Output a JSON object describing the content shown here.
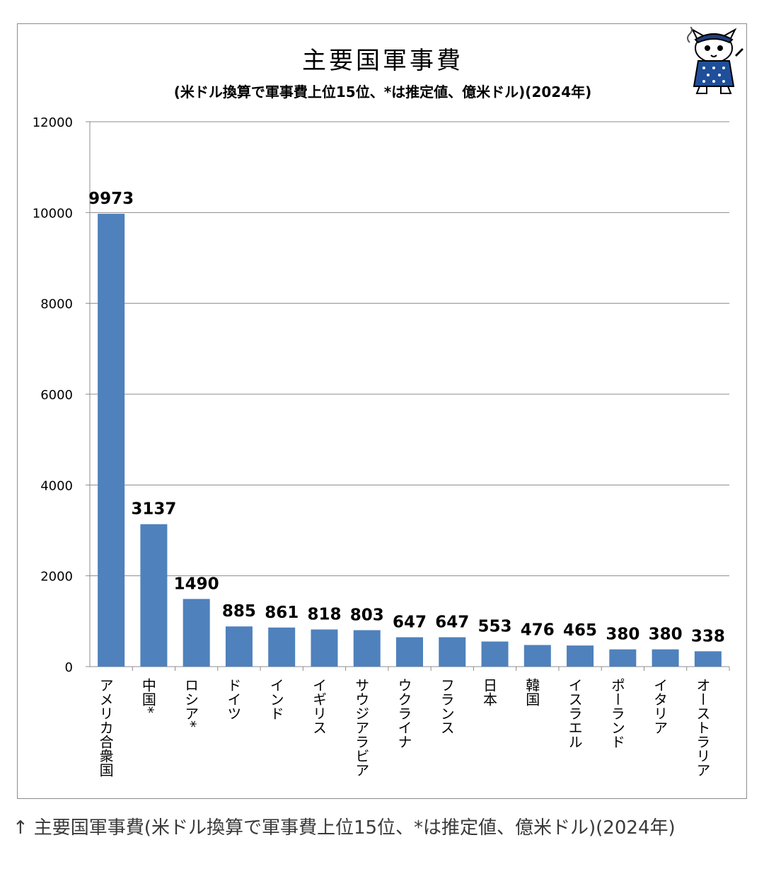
{
  "caption": {
    "arrow": "↑",
    "text": "主要国軍事費(米ドル換算で軍事費上位15位、*は推定値、億米ドル)(2024年)"
  },
  "colors": {
    "bar": "#4f81bd",
    "grid": "#8c8c8c",
    "axis": "#8c8c8c"
  },
  "mascot": {
    "icon": "cat-mascot-icon"
  },
  "chart_data": {
    "type": "bar",
    "title": "主要国軍事費",
    "subtitle": "(米ドル換算で軍事費上位15位、*は推定値、億米ドル)(2024年)",
    "categories": [
      "アメリカ合衆国",
      "中国*",
      "ロシア*",
      "ドイツ",
      "インド",
      "イギリス",
      "サウジアラビア",
      "ウクライナ",
      "フランス",
      "日本",
      "韓国",
      "イスラエル",
      "ポーランド",
      "イタリア",
      "オーストラリア"
    ],
    "values": [
      9973,
      3137,
      1490,
      885,
      861,
      818,
      803,
      647,
      647,
      553,
      476,
      465,
      380,
      380,
      338
    ],
    "data_labels": [
      "9973",
      "3137",
      "1490",
      "885",
      "861",
      "818",
      "803",
      "647",
      "647",
      "553",
      "476",
      "465",
      "380",
      "380",
      "338"
    ],
    "yticks": [
      "0",
      "2000",
      "4000",
      "6000",
      "8000",
      "10000",
      "12000"
    ],
    "ylim": [
      0,
      12000
    ],
    "grid": true,
    "legend": "none",
    "xlabel": "",
    "ylabel": ""
  }
}
